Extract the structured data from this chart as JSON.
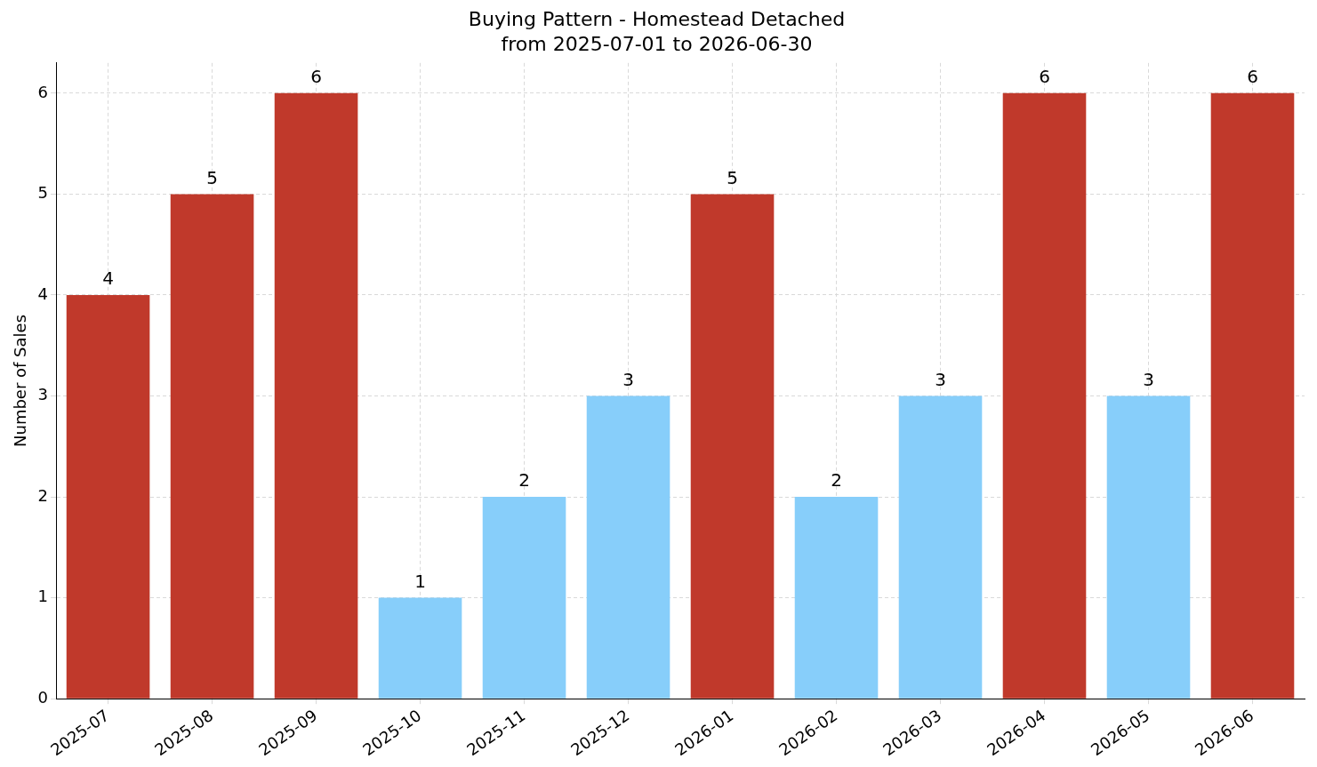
{
  "chart_data": {
    "type": "bar",
    "title": "Buying Pattern - Homestead Detached",
    "subtitle": "from 2025-07-01 to 2026-06-30",
    "ylabel": "Number of Sales",
    "categories": [
      "2025-07",
      "2025-08",
      "2025-09",
      "2025-10",
      "2025-11",
      "2025-12",
      "2026-01",
      "2026-02",
      "2026-03",
      "2026-04",
      "2026-05",
      "2026-06"
    ],
    "values": [
      4,
      5,
      6,
      1,
      2,
      3,
      5,
      2,
      3,
      6,
      3,
      6
    ],
    "colors": [
      "#c0392b",
      "#c0392b",
      "#c0392b",
      "#87cefa",
      "#87cefa",
      "#87cefa",
      "#c0392b",
      "#87cefa",
      "#87cefa",
      "#c0392b",
      "#87cefa",
      "#c0392b"
    ],
    "ylim": [
      0,
      6.3
    ],
    "yticks": [
      0,
      1,
      2,
      3,
      4,
      5,
      6
    ],
    "grid": true,
    "data_labels": true,
    "legend": false
  }
}
